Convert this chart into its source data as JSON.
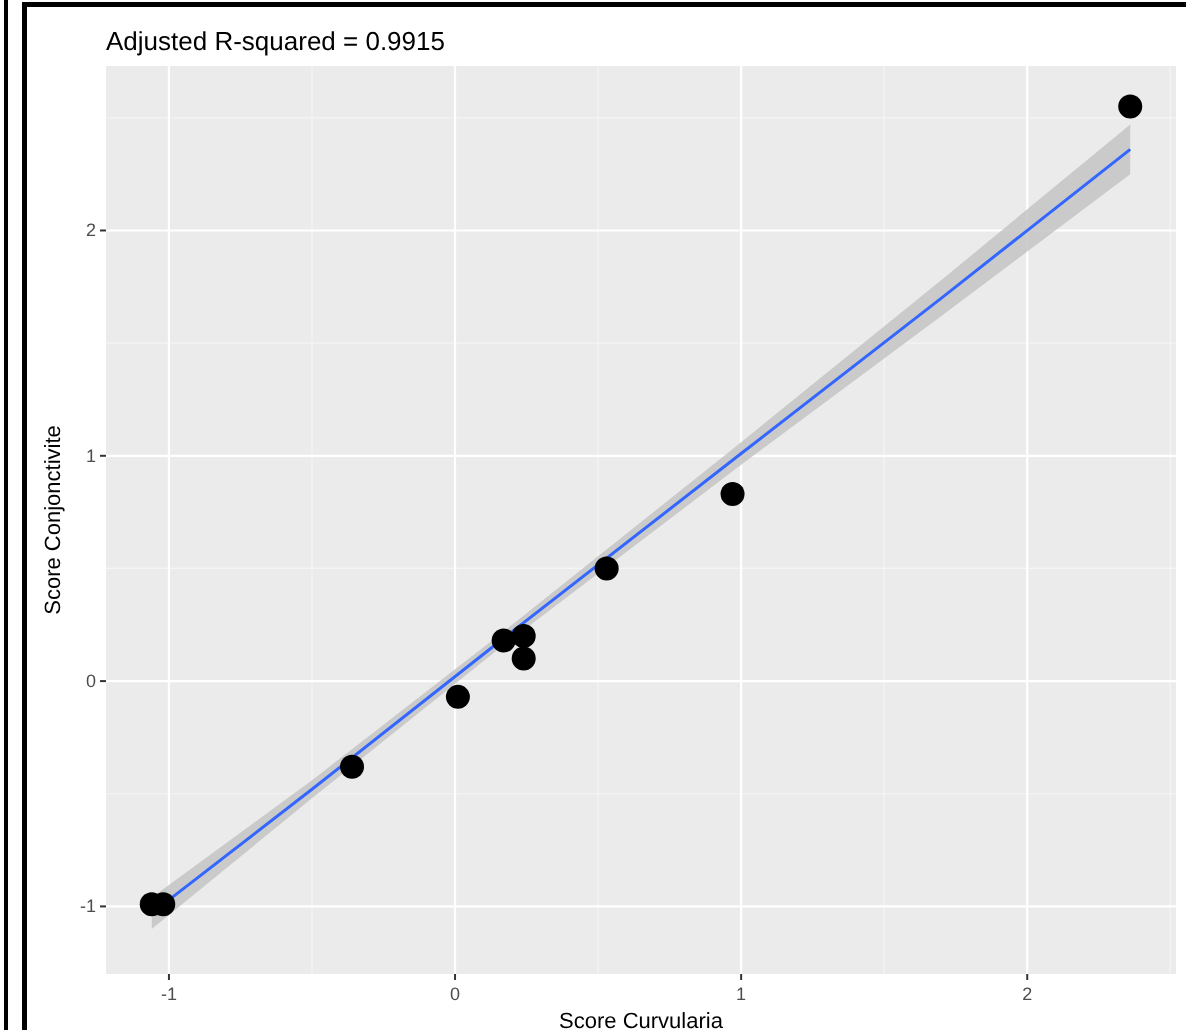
{
  "chart_data": {
    "type": "scatter",
    "title": "Adjusted R-squared = 0.9915",
    "xlabel": "Score Curvularia",
    "ylabel": "Score Conjonctivite",
    "xlim": [
      -1.22,
      2.52
    ],
    "ylim": [
      -1.3,
      2.73
    ],
    "xticks": [
      -1,
      0,
      1,
      2
    ],
    "yticks": [
      -1,
      0,
      1,
      2
    ],
    "grid": true,
    "series": [
      {
        "type": "line",
        "color": "#3366ff",
        "x": [
          -1.06,
          -0.5,
          0.15,
          1,
          1.7,
          2.36
        ],
        "values": [
          -1.03,
          -0.48,
          0.17,
          1.01,
          1.7,
          2.36
        ],
        "lower": [
          -1.1,
          -0.52,
          0.14,
          0.96,
          1.62,
          2.25
        ],
        "upper": [
          -0.96,
          -0.44,
          0.2,
          1.06,
          1.78,
          2.47
        ]
      },
      {
        "color": "#000000",
        "marker": "circle",
        "x": [
          -1.06,
          -1.02,
          -0.36,
          0.01,
          0.17,
          0.24,
          0.24,
          0.53,
          0.97,
          2.36
        ],
        "values": [
          -0.99,
          -0.99,
          -0.38,
          -0.07,
          0.18,
          0.2,
          0.1,
          0.5,
          0.83,
          2.55
        ]
      }
    ]
  }
}
